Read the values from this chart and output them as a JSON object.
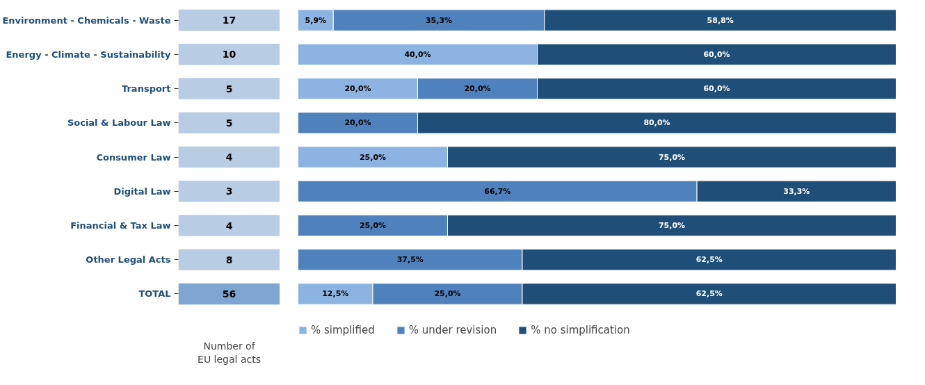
{
  "chart_data": [
    {
      "type": "other",
      "categories": [
        "Environment - Chemicals - Waste",
        "Energy - Climate - Sustainability",
        "Transport",
        "Social & Labour Law",
        "Consumer Law",
        "Digital Law",
        "Financial & Tax Law",
        "Other Legal Acts",
        "TOTAL"
      ],
      "values": [
        17,
        10,
        5,
        5,
        4,
        3,
        4,
        8,
        56
      ],
      "colors": [
        "#b8cce4",
        "#b8cce4",
        "#b8cce4",
        "#b8cce4",
        "#b8cce4",
        "#b8cce4",
        "#b8cce4",
        "#b8cce4",
        "#7fa6d0"
      ],
      "data_labels": true,
      "xlabel": "Number of\nEU legal acts"
    },
    {
      "type": "bar",
      "orientation": "horizontal",
      "stacked": true,
      "categories": [
        null,
        null,
        null,
        null,
        null,
        null,
        null,
        null,
        null
      ],
      "xlim": [
        0,
        100
      ],
      "tick_labels": false,
      "legend": "bottom",
      "series": [
        {
          "name": "% simplified",
          "color": "#8db3e2",
          "values": [
            5.9,
            40.0,
            20.0,
            null,
            25.0,
            null,
            null,
            null,
            12.5
          ],
          "value_labels": [
            "5,9%",
            "40,0%",
            "20,0%",
            null,
            "25,0%",
            null,
            null,
            null,
            "12,5%"
          ]
        },
        {
          "name": "% under revision",
          "color": "#4f81bd",
          "values": [
            35.3,
            null,
            20.0,
            20.0,
            null,
            66.7,
            25.0,
            37.5,
            25.0
          ],
          "value_labels": [
            "35,3%",
            null,
            "20,0%",
            "20,0%",
            null,
            "66,7%",
            "25,0%",
            "37,5%",
            "25,0%"
          ]
        },
        {
          "name": "% no simplification",
          "color": "#1f4e79",
          "values": [
            58.8,
            60.0,
            60.0,
            80.0,
            75.0,
            33.3,
            75.0,
            62.5,
            62.5
          ],
          "value_labels": [
            "58,8%",
            "60,0%",
            "60,0%",
            "80,0%",
            "75,0%",
            "33,3%",
            "75,0%",
            "62,5%",
            "62,5%"
          ]
        }
      ]
    }
  ]
}
